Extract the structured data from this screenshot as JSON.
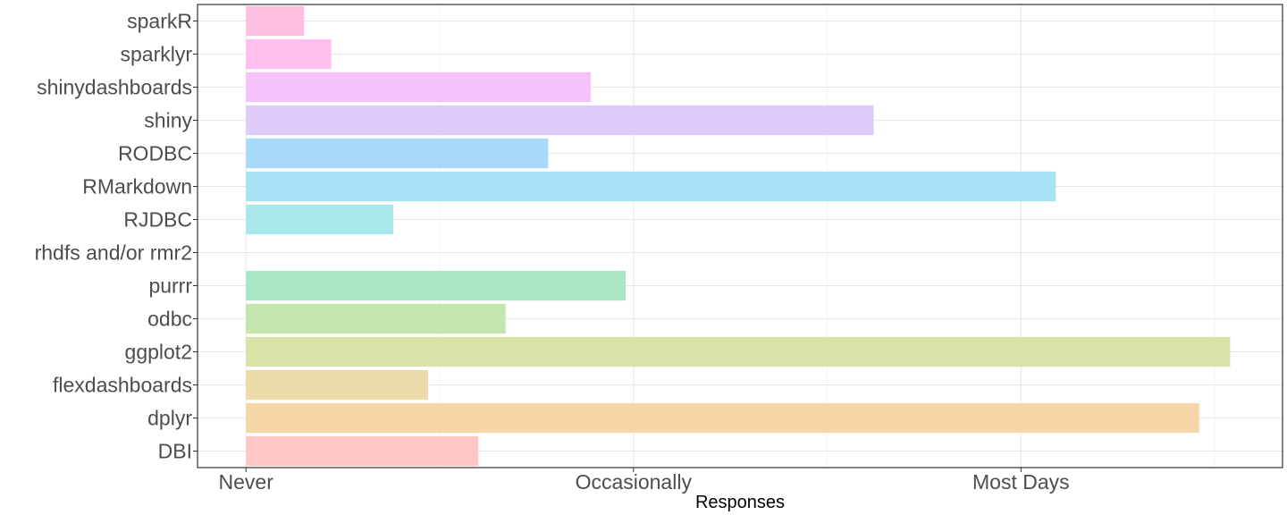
{
  "chart_data": {
    "type": "bar",
    "orientation": "horizontal",
    "title": "",
    "xlabel": "Responses",
    "ylabel": "",
    "x_ticks": [
      "Never",
      "Occasionally",
      "Most Days"
    ],
    "x_tick_values": [
      0,
      1,
      2
    ],
    "xlim": [
      -0.125,
      2.675
    ],
    "grid": true,
    "legend": "none",
    "categories": [
      "sparkR",
      "sparklyr",
      "shinydashboards",
      "shiny",
      "RODBC",
      "RMarkdown",
      "RJDBC",
      "rhdfs and/or rmr2",
      "purrr",
      "odbc",
      "ggplot2",
      "flexdashboards",
      "dplyr",
      "DBI"
    ],
    "values": [
      0.15,
      0.22,
      0.89,
      1.62,
      0.78,
      2.09,
      0.38,
      0,
      0.98,
      0.67,
      2.54,
      0.47,
      2.46,
      0.6
    ],
    "colors": [
      "#FFC0E0",
      "#FFC0F0",
      "#F5C3FA",
      "#DDCCFA",
      "#A8D8FA",
      "#A7E2F5",
      "#A8E8EA",
      "#A9E6D8",
      "#A9E6C4",
      "#C4E6AE",
      "#DAE2AA",
      "#EEDBAA",
      "#F5D6A6",
      "#FFC8C8"
    ]
  }
}
